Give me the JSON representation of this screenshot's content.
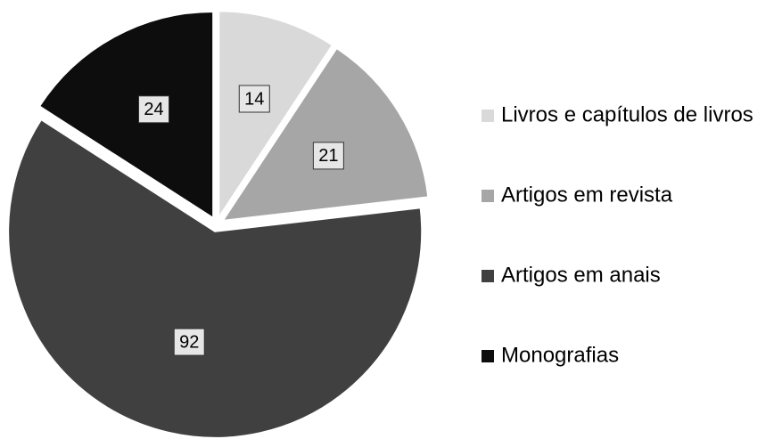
{
  "chart_data": {
    "type": "pie",
    "categories": [
      "Livros e capítulos de livros",
      "Artigos em revista",
      "Artigos em anais",
      "Monografias"
    ],
    "values": [
      14,
      21,
      92,
      24
    ],
    "colors": [
      "#d9d9d9",
      "#a6a6a6",
      "#404040",
      "#0d0d0d"
    ],
    "legend": "right"
  }
}
